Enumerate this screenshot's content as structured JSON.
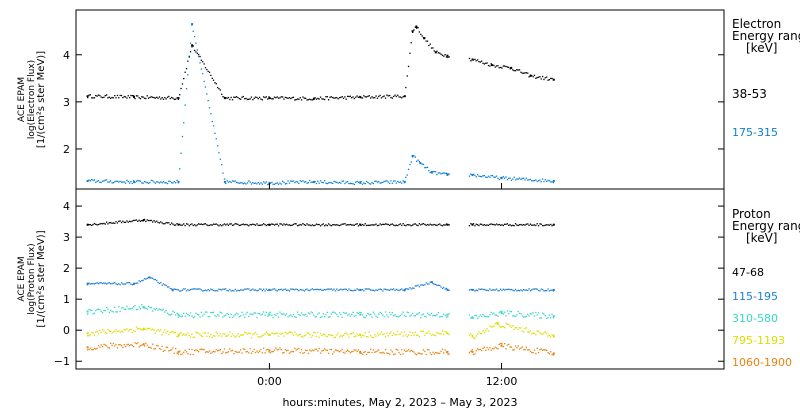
{
  "chart_data": [
    {
      "type": "scatter",
      "panel": "electron",
      "ylabel_lines": [
        "ACE EPAM",
        "log(Electron Flux)",
        "[1/(cm²s ster MeV)]"
      ],
      "legend_title_lines": [
        "Electron",
        "Energy ranges",
        "[keV]"
      ],
      "yticks": [
        {
          "label": "4",
          "value": 4
        },
        {
          "label": "3",
          "value": 3
        },
        {
          "label": "2",
          "value": 2
        }
      ],
      "ylim": [
        1.15,
        4.95
      ],
      "series": [
        {
          "name": "38-53",
          "color": "#000000",
          "points": [
            [
              -9.4,
              3.12
            ],
            [
              -7,
              3.1
            ],
            [
              -4.7,
              3.08
            ],
            [
              -4,
              4.2
            ],
            [
              -2.3,
              3.08
            ],
            [
              0,
              3.08
            ],
            [
              2.3,
              3.07
            ],
            [
              4.7,
              3.1
            ],
            [
              7,
              3.12
            ],
            [
              7.4,
              4.5
            ],
            [
              7.6,
              4.6
            ],
            [
              8,
              4.35
            ],
            [
              8.6,
              4.05
            ],
            [
              9.2,
              3.98
            ],
            [
              10.5,
              3.9
            ],
            [
              11.5,
              3.78
            ],
            [
              12.5,
              3.72
            ],
            [
              13.5,
              3.55
            ],
            [
              14.7,
              3.47
            ]
          ]
        },
        {
          "name": "175-315",
          "color": "#0b7fd6",
          "points": [
            [
              -9.4,
              1.32
            ],
            [
              -7,
              1.3
            ],
            [
              -4.7,
              1.3
            ],
            [
              -4,
              4.65
            ],
            [
              -2.3,
              1.3
            ],
            [
              0,
              1.28
            ],
            [
              2.3,
              1.3
            ],
            [
              4.7,
              1.28
            ],
            [
              7,
              1.3
            ],
            [
              7.4,
              1.85
            ],
            [
              7.8,
              1.7
            ],
            [
              8.4,
              1.5
            ],
            [
              9.2,
              1.45
            ],
            [
              10.5,
              1.45
            ],
            [
              12,
              1.38
            ],
            [
              14.7,
              1.32
            ]
          ]
        }
      ]
    },
    {
      "type": "scatter",
      "panel": "proton",
      "ylabel_lines": [
        "ACE EPAM",
        "log(Proton Flux)",
        "[1/(cm²s ster MeV)]"
      ],
      "legend_title_lines": [
        "Proton",
        "Energy ranges",
        "[keV]"
      ],
      "yticks": [
        {
          "label": "4",
          "value": 4
        },
        {
          "label": "3",
          "value": 3
        },
        {
          "label": "2",
          "value": 2
        },
        {
          "label": "1",
          "value": 1
        },
        {
          "label": "0",
          "value": 0
        },
        {
          "label": "−1",
          "value": -1
        }
      ],
      "ylim": [
        -1.25,
        4.55
      ],
      "series": [
        {
          "name": "47-68",
          "color": "#000000",
          "points": [
            [
              -9.4,
              3.4
            ],
            [
              -6.5,
              3.55
            ],
            [
              -4.7,
              3.4
            ],
            [
              0,
              3.4
            ],
            [
              4.7,
              3.4
            ],
            [
              9.2,
              3.4
            ],
            [
              10.5,
              3.4
            ],
            [
              14.7,
              3.4
            ]
          ]
        },
        {
          "name": "115-195",
          "color": "#1d7ed6",
          "points": [
            [
              -9.4,
              1.5
            ],
            [
              -7,
              1.5
            ],
            [
              -6.2,
              1.7
            ],
            [
              -5,
              1.3
            ],
            [
              0,
              1.3
            ],
            [
              4.7,
              1.3
            ],
            [
              7,
              1.3
            ],
            [
              8.4,
              1.55
            ],
            [
              9.2,
              1.3
            ],
            [
              10.5,
              1.3
            ],
            [
              14.7,
              1.3
            ]
          ]
        },
        {
          "name": "310-580",
          "color": "#37d6c6",
          "points": [
            [
              -9.4,
              0.6
            ],
            [
              -6.5,
              0.75
            ],
            [
              -4.7,
              0.5
            ],
            [
              0,
              0.5
            ],
            [
              4.7,
              0.5
            ],
            [
              9.2,
              0.5
            ],
            [
              10.5,
              0.4
            ],
            [
              12,
              0.55
            ],
            [
              14.7,
              0.45
            ]
          ]
        },
        {
          "name": "795-1193",
          "color": "#dcdc00",
          "points": [
            [
              -9.4,
              -0.1
            ],
            [
              -6.5,
              0.05
            ],
            [
              -4.7,
              -0.15
            ],
            [
              0,
              -0.15
            ],
            [
              4.7,
              -0.15
            ],
            [
              9.2,
              -0.1
            ],
            [
              10.5,
              -0.2
            ],
            [
              11.8,
              0.2
            ],
            [
              14.7,
              -0.2
            ]
          ]
        },
        {
          "name": "1060-1900",
          "color": "#e8820f",
          "points": [
            [
              -9.4,
              -0.55
            ],
            [
              -6.5,
              -0.45
            ],
            [
              -4.7,
              -0.7
            ],
            [
              0,
              -0.65
            ],
            [
              4.7,
              -0.7
            ],
            [
              9.2,
              -0.7
            ],
            [
              10.5,
              -0.7
            ],
            [
              12,
              -0.5
            ],
            [
              14.7,
              -0.75
            ]
          ]
        }
      ]
    }
  ],
  "x_axis": {
    "label": "hours:minutes, May  2, 2023 – May  3, 2023",
    "xlim": [
      -10,
      23.5
    ],
    "ticks": [
      {
        "label": "0:00",
        "value": 0
      },
      {
        "label": "12:00",
        "value": 12
      }
    ]
  }
}
